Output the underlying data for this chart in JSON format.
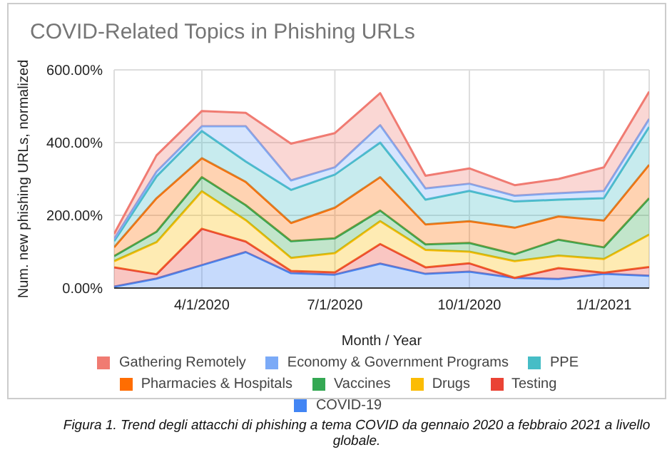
{
  "chart_data": {
    "type": "area",
    "title": "COVID-Related Topics in Phishing URLs",
    "xlabel": "Month / Year",
    "ylabel": "Num. new phishing URLs, normalized",
    "stacked": true,
    "grid": true,
    "legend": "bottom",
    "x": [
      "2020-02",
      "2020-03",
      "2020-04",
      "2020-05",
      "2020-06",
      "2020-07",
      "2020-08",
      "2020-09",
      "2020-10",
      "2020-11",
      "2020-12",
      "2021-01",
      "2021-02"
    ],
    "xlim": [
      "2020-02",
      "2021-02"
    ],
    "xticks": [
      {
        "value": "2020-04",
        "label": "4/1/2020"
      },
      {
        "value": "2020-07",
        "label": "7/1/2020"
      },
      {
        "value": "2020-10",
        "label": "10/1/2020"
      },
      {
        "value": "2021-01",
        "label": "1/1/2021"
      }
    ],
    "ylim": [
      0,
      600
    ],
    "yticks": [
      {
        "value": 0,
        "label": "0.00%"
      },
      {
        "value": 200,
        "label": "200.00%"
      },
      {
        "value": 400,
        "label": "400.00%"
      },
      {
        "value": 600,
        "label": "600.00%"
      }
    ],
    "series": [
      {
        "name": "COVID-19",
        "color": "#4285f4",
        "values": [
          4,
          26,
          63,
          99,
          41,
          37,
          67,
          39,
          45,
          28,
          25,
          39,
          34
        ]
      },
      {
        "name": "Testing",
        "color": "#ea4335",
        "values": [
          53,
          12,
          100,
          29,
          6,
          6,
          54,
          18,
          23,
          0,
          30,
          3,
          24
        ]
      },
      {
        "name": "Drugs",
        "color": "#fbbc04",
        "values": [
          17,
          88,
          103,
          59,
          36,
          53,
          63,
          48,
          32,
          46,
          34,
          38,
          89
        ]
      },
      {
        "name": "Vaccines",
        "color": "#34a853",
        "values": [
          14,
          29,
          39,
          41,
          46,
          41,
          29,
          15,
          24,
          19,
          44,
          32,
          100
        ]
      },
      {
        "name": "Pharmacies & Hospitals",
        "color": "#ff6d01",
        "values": [
          24,
          92,
          52,
          64,
          50,
          84,
          92,
          55,
          60,
          73,
          64,
          74,
          92
        ]
      },
      {
        "name": "PPE",
        "color": "#46bdc6",
        "values": [
          17,
          60,
          75,
          56,
          91,
          91,
          95,
          68,
          83,
          72,
          46,
          61,
          104
        ]
      },
      {
        "name": "Economy & Government Programs",
        "color": "#7baaf7",
        "values": [
          6,
          13,
          13,
          97,
          26,
          20,
          48,
          31,
          20,
          16,
          18,
          20,
          22
        ]
      },
      {
        "name": "Gathering Remotely",
        "color": "#f07b72",
        "values": [
          14,
          45,
          42,
          37,
          101,
          94,
          88,
          35,
          42,
          29,
          39,
          65,
          75
        ]
      }
    ],
    "annotations": [
      "Figura 1. Trend degli attacchi di phishing a tema COVID da gennaio 2020 a febbraio 2021 a livello globale."
    ]
  }
}
